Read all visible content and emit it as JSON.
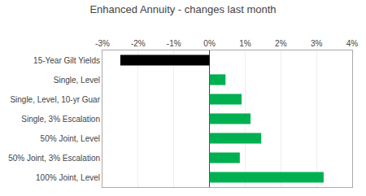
{
  "chart_data": {
    "type": "bar",
    "orientation": "horizontal",
    "title": "Enhanced Annuity - changes last month",
    "categories": [
      "15-Year Gilt Yields",
      "Single, Level",
      "Single, Level, 10-yr Guar",
      "Single, 3% Escalation",
      "50% Joint, Level",
      "50% Joint, 3% Escalation",
      "100% Joint, Level"
    ],
    "values": [
      -2.5,
      0.45,
      0.9,
      1.15,
      1.45,
      0.85,
      3.2
    ],
    "colors": [
      "#000000",
      "#00b050",
      "#00b050",
      "#00b050",
      "#00b050",
      "#00b050",
      "#00b050"
    ],
    "xlim": [
      -3.0,
      4.0
    ],
    "xticks": [
      {
        "value": -3,
        "label": "-3%"
      },
      {
        "value": -2,
        "label": "-2%"
      },
      {
        "value": -1,
        "label": "-1%"
      },
      {
        "value": 0,
        "label": "0%"
      },
      {
        "value": 1,
        "label": "1%"
      },
      {
        "value": 2,
        "label": "2%"
      },
      {
        "value": 3,
        "label": "3%"
      },
      {
        "value": 4,
        "label": "4%"
      }
    ],
    "grid": true
  }
}
